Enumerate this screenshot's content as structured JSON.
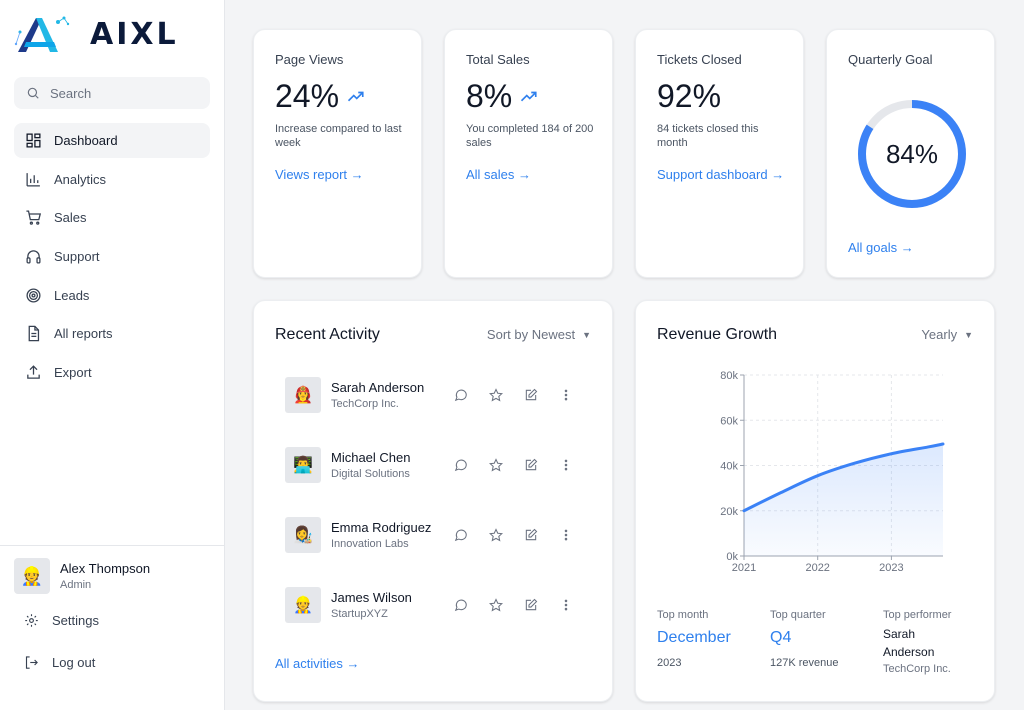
{
  "brand": {
    "name": "AIXL",
    "logo_icon": "aixl-logo-icon"
  },
  "search": {
    "placeholder": "Search"
  },
  "nav": {
    "items": [
      {
        "label": "Dashboard",
        "icon": "dashboard-icon",
        "active": true
      },
      {
        "label": "Analytics",
        "icon": "bar-chart-icon"
      },
      {
        "label": "Sales",
        "icon": "cart-icon"
      },
      {
        "label": "Support",
        "icon": "headphones-icon"
      },
      {
        "label": "Leads",
        "icon": "target-icon"
      },
      {
        "label": "All reports",
        "icon": "document-icon"
      },
      {
        "label": "Export",
        "icon": "export-icon"
      }
    ]
  },
  "user": {
    "name": "Alex Thompson",
    "role": "Admin",
    "avatar": "👷"
  },
  "settings_label": "Settings",
  "logout_label": "Log out",
  "stats": [
    {
      "title": "Page Views",
      "value": "24%",
      "trend": "trending-up-icon",
      "desc": "Increase compared to last week",
      "link": "Views report →"
    },
    {
      "title": "Total Sales",
      "value": "8%",
      "trend": "trending-up-icon",
      "desc": "You completed 184 of 200 sales",
      "link": "All sales →"
    },
    {
      "title": "Tickets Closed",
      "value": "92%",
      "desc": "84 tickets closed this month",
      "link": "Support dashboard →"
    }
  ],
  "goal": {
    "title": "Quarterly Goal",
    "percent": 84,
    "display": "84%",
    "link": "All goals →"
  },
  "activity": {
    "title": "Recent Activity",
    "sort": "Sort by Newest",
    "items": [
      {
        "name": "Sarah Anderson",
        "company": "TechCorp Inc.",
        "avatar": "👩‍🚒"
      },
      {
        "name": "Michael Chen",
        "company": "Digital Solutions",
        "avatar": "👨‍💻"
      },
      {
        "name": "Emma Rodriguez",
        "company": "Innovation Labs",
        "avatar": "👩‍🎨"
      },
      {
        "name": "James Wilson",
        "company": "StartupXYZ",
        "avatar": "👷"
      }
    ],
    "link": "All activities →"
  },
  "revenue": {
    "title": "Revenue Growth",
    "period": "Yearly",
    "footer": {
      "top_month": {
        "label": "Top month",
        "value": "December",
        "sub": "2023"
      },
      "top_quarter": {
        "label": "Top quarter",
        "value": "Q4",
        "sub": "127K revenue"
      },
      "top_performer": {
        "label": "Top performer",
        "name": "Sarah Anderson",
        "company": "TechCorp Inc."
      }
    }
  },
  "chart_data": {
    "type": "area",
    "title": "Revenue Growth",
    "x": [
      2021,
      2021.5,
      2022,
      2022.5,
      2023,
      2023.5,
      2023.7
    ],
    "values": [
      20000,
      28000,
      35500,
      41000,
      45200,
      48200,
      49500
    ],
    "xticks": [
      "2021",
      "2022",
      "2023"
    ],
    "xtick_values": [
      2021,
      2022,
      2023
    ],
    "yticks": [
      "0k",
      "20k",
      "40k",
      "60k",
      "80k"
    ],
    "ytick_values": [
      0,
      20000,
      40000,
      60000,
      80000
    ],
    "xlim": [
      2021,
      2023.7
    ],
    "ylim": [
      0,
      80000
    ],
    "grid": true,
    "color": "#3b82f6"
  }
}
